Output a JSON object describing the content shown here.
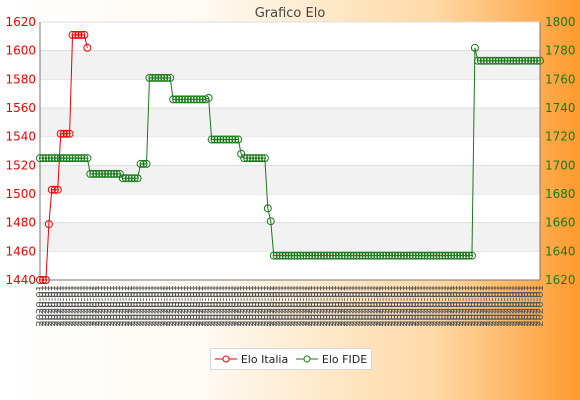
{
  "chart_data": {
    "type": "line",
    "title": "Grafico Elo",
    "x_tick_label": "2020-01",
    "y_left": {
      "min": 1440,
      "max": 1620,
      "ticks": [
        1440,
        1460,
        1480,
        1500,
        1520,
        1540,
        1560,
        1580,
        1600,
        1620
      ],
      "color": "#ee0000"
    },
    "y_right": {
      "min": 1620,
      "max": 1800,
      "ticks": [
        1620,
        1640,
        1660,
        1680,
        1700,
        1720,
        1740,
        1760,
        1780,
        1800
      ],
      "color": "#1a7a1a"
    },
    "grid": "horizontal bands",
    "legend_placement": "bottom",
    "series": [
      {
        "name": "Elo Italia",
        "axis": "left",
        "color": "#ee0000",
        "values": [
          1440,
          1440,
          1440,
          1479,
          1503,
          1503,
          1503,
          1542,
          1542,
          1542,
          1542,
          1611,
          1611,
          1611,
          1611,
          1611,
          1602
        ]
      },
      {
        "name": "Elo FIDE",
        "axis": "right",
        "color": "#1a7a1a",
        "values": [
          1705,
          1705,
          1705,
          1705,
          1705,
          1705,
          1705,
          1705,
          1705,
          1705,
          1705,
          1705,
          1705,
          1705,
          1705,
          1705,
          1705,
          1694,
          1694,
          1694,
          1694,
          1694,
          1694,
          1694,
          1694,
          1694,
          1694,
          1694,
          1691,
          1691,
          1691,
          1691,
          1691,
          1691,
          1701,
          1701,
          1701,
          1761,
          1761,
          1761,
          1761,
          1761,
          1761,
          1761,
          1761,
          1746,
          1746,
          1746,
          1746,
          1746,
          1746,
          1746,
          1746,
          1746,
          1746,
          1746,
          1746,
          1747,
          1718,
          1718,
          1718,
          1718,
          1718,
          1718,
          1718,
          1718,
          1718,
          1718,
          1708,
          1705,
          1705,
          1705,
          1705,
          1705,
          1705,
          1705,
          1705,
          1670,
          1661,
          1637,
          1637,
          1637,
          1637,
          1637,
          1637,
          1637,
          1637,
          1637,
          1637,
          1637,
          1637,
          1637,
          1637,
          1637,
          1637,
          1637,
          1637,
          1637,
          1637,
          1637,
          1637,
          1637,
          1637,
          1637,
          1637,
          1637,
          1637,
          1637,
          1637,
          1637,
          1637,
          1637,
          1637,
          1637,
          1637,
          1637,
          1637,
          1637,
          1637,
          1637,
          1637,
          1637,
          1637,
          1637,
          1637,
          1637,
          1637,
          1637,
          1637,
          1637,
          1637,
          1637,
          1637,
          1637,
          1637,
          1637,
          1637,
          1637,
          1637,
          1637,
          1637,
          1637,
          1637,
          1637,
          1637,
          1637,
          1637,
          1782,
          1773,
          1773,
          1773,
          1773,
          1773,
          1773,
          1773,
          1773,
          1773,
          1773,
          1773,
          1773,
          1773,
          1773,
          1773,
          1773,
          1773,
          1773,
          1773,
          1773,
          1773,
          1773
        ]
      }
    ]
  }
}
